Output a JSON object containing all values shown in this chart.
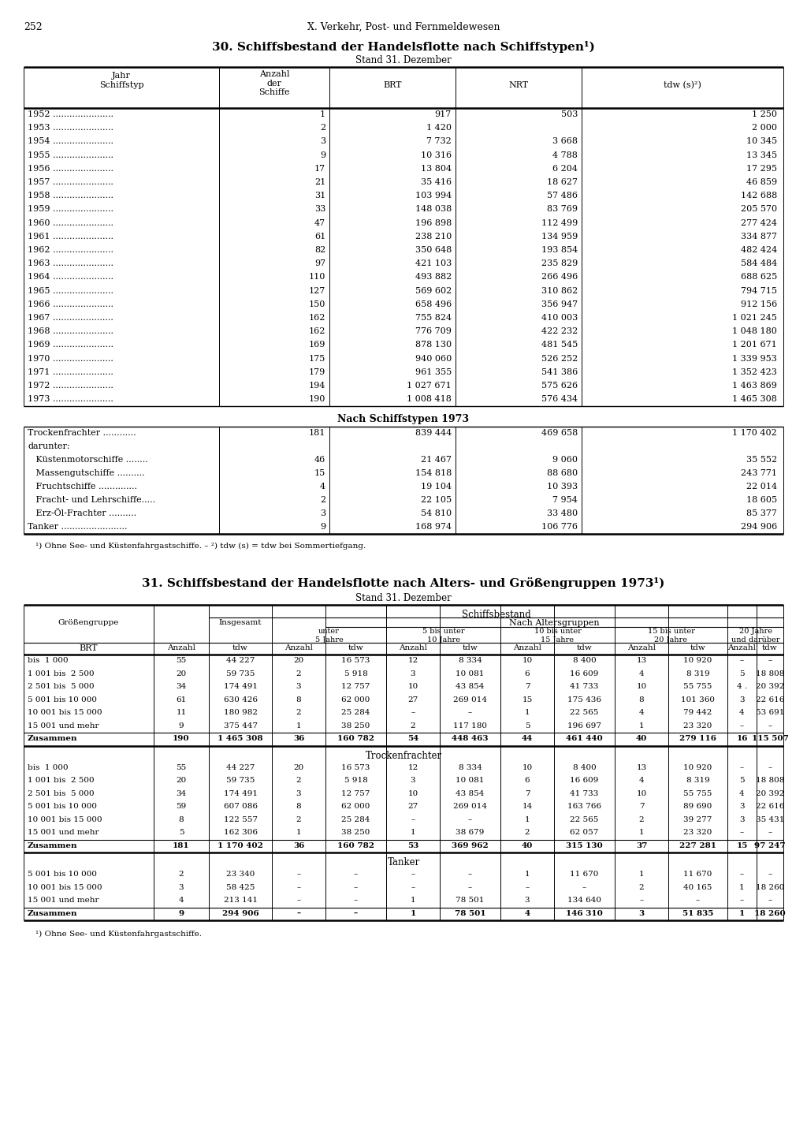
{
  "page_number": "252",
  "header": "X. Verkehr, Post- und Fernmeldewesen",
  "title1": "30. Schiffsbestand der Handelsflotte nach Schiffstypen¹)",
  "subtitle1": "Stand 31. Dezember",
  "table1_years": [
    [
      "1952",
      "1",
      "917",
      "503",
      "1 250"
    ],
    [
      "1953",
      "2",
      "1 420",
      "",
      "2 000"
    ],
    [
      "1954",
      "3",
      "7 732",
      "3 668",
      "10 345"
    ],
    [
      "1955",
      "9",
      "10 316",
      "4 788",
      "13 345"
    ],
    [
      "1956",
      "17",
      "13 804",
      "6 204",
      "17 295"
    ],
    [
      "1957",
      "21",
      "35 416",
      "18 627",
      "46 859"
    ],
    [
      "1958",
      "31",
      "103 994",
      "57 486",
      "142 688"
    ],
    [
      "1959",
      "33",
      "148 038",
      "83 769",
      "205 570"
    ],
    [
      "1960",
      "47",
      "196 898",
      "112 499",
      "277 424"
    ],
    [
      "1961",
      "61",
      "238 210",
      "134 959",
      "334 877"
    ],
    [
      "1962",
      "82",
      "350 648",
      "193 854",
      "482 424"
    ],
    [
      "1963",
      "97",
      "421 103",
      "235 829",
      "584 484"
    ],
    [
      "1964",
      "110",
      "493 882",
      "266 496",
      "688 625"
    ],
    [
      "1965",
      "127",
      "569 602",
      "310 862",
      "794 715"
    ],
    [
      "1966",
      "150",
      "658 496",
      "356 947",
      "912 156"
    ],
    [
      "1967",
      "162",
      "755 824",
      "410 003",
      "1 021 245"
    ],
    [
      "1968",
      "162",
      "776 709",
      "422 232",
      "1 048 180"
    ],
    [
      "1969",
      "169",
      "878 130",
      "481 545",
      "1 201 671"
    ],
    [
      "1970",
      "175",
      "940 060",
      "526 252",
      "1 339 953"
    ],
    [
      "1971",
      "179",
      "961 355",
      "541 386",
      "1 352 423"
    ],
    [
      "1972",
      "194",
      "1 027 671",
      "575 626",
      "1 463 869"
    ],
    [
      "1973",
      "190",
      "1 008 418",
      "576 434",
      "1 465 308"
    ]
  ],
  "section_header1": "Nach Schiffstypen 1973",
  "table1_types": [
    [
      "Trockenfrachter ............",
      "181",
      "839 444",
      "469 658",
      "1 170 402",
      false
    ],
    [
      "darunter:",
      "",
      "",
      "",
      "",
      false
    ],
    [
      "   Küstenmotorschiffe ........",
      "46",
      "21 467",
      "9 060",
      "35 552",
      true
    ],
    [
      "   Massengutschiffe ..........",
      "15",
      "154 818",
      "88 680",
      "243 771",
      true
    ],
    [
      "   Fruchtschiffe ..............",
      "4",
      "19 104",
      "10 393",
      "22 014",
      true
    ],
    [
      "   Fracht- und Lehrschiffe.....",
      "2",
      "22 105",
      "7 954",
      "18 605",
      true
    ],
    [
      "   Erz-Öl-Frachter ..........",
      "3",
      "54 810",
      "33 480",
      "85 377",
      true
    ],
    [
      "Tanker ........................",
      "9",
      "168 974",
      "106 776",
      "294 906",
      false
    ]
  ],
  "footnote1": "¹) Ohne See- und Küstenfahrgastschiffe. – ²) tdw (s) = tdw bei Sommertiefgang.",
  "title2": "31. Schiffsbestand der Handelsflotte nach Alters- und Größengruppen 1973¹)",
  "subtitle2": "Stand 31. Dezember",
  "table2_age_groups": [
    "unter\n5 Jahre",
    "5 bis unter\n10 Jahre",
    "10 bis unter\n15 Jahre",
    "15 bis unter\n20 Jahre",
    "20 Jahre\nund darüber"
  ],
  "table2_insgesamt": [
    [
      "bis  1 000",
      "55",
      "44 227",
      "20",
      "16 573",
      "12",
      "8 334",
      "10",
      "8 400",
      "13",
      "10 920",
      "–",
      "–"
    ],
    [
      "1 001 bis  2 500",
      "20",
      "59 735",
      "2",
      "5 918",
      "3",
      "10 081",
      "6",
      "16 609",
      "4",
      "8 319",
      "5",
      "18 808"
    ],
    [
      "2 501 bis  5 000",
      "34",
      "174 491",
      "3",
      "12 757",
      "10",
      "43 854",
      "7",
      "41 733",
      "10",
      "55 755",
      "4 .",
      "20 392"
    ],
    [
      "5 001 bis 10 000",
      "61",
      "630 426",
      "8",
      "62 000",
      "27",
      "269 014",
      "15",
      "175 436",
      "8",
      "101 360",
      "3",
      "22 616"
    ],
    [
      "10 001 bis 15 000",
      "11",
      "180 982",
      "2",
      "25 284",
      "–",
      "–",
      "1",
      "22 565",
      "4",
      "79 442",
      "4",
      "53 691"
    ],
    [
      "15 001 und mehr",
      "9",
      "375 447",
      "1",
      "38 250",
      "2",
      "117 180",
      "5",
      "196 697",
      "1",
      "23 320",
      "–",
      "–"
    ]
  ],
  "table2_zusammen": [
    "190",
    "1 465 308",
    "36",
    "160 782",
    "54",
    "448 463",
    "44",
    "461 440",
    "40",
    "279 116",
    "16",
    "115 507"
  ],
  "table2_trockenfrachter": [
    [
      "bis  1 000",
      "55",
      "44 227",
      "20",
      "16 573",
      "12",
      "8 334",
      "10",
      "8 400",
      "13",
      "10 920",
      "–",
      "–"
    ],
    [
      "1 001 bis  2 500",
      "20",
      "59 735",
      "2",
      "5 918",
      "3",
      "10 081",
      "6",
      "16 609",
      "4",
      "8 319",
      "5",
      "18 808"
    ],
    [
      "2 501 bis  5 000",
      "34",
      "174 491",
      "3",
      "12 757",
      "10",
      "43 854",
      "7",
      "41 733",
      "10",
      "55 755",
      "4",
      "20 392"
    ],
    [
      "5 001 bis 10 000",
      "59",
      "607 086",
      "8",
      "62 000",
      "27",
      "269 014",
      "14",
      "163 766",
      "7",
      "89 690",
      "3",
      "22 616"
    ],
    [
      "10 001 bis 15 000",
      "8",
      "122 557",
      "2",
      "25 284",
      "–",
      "–",
      "1",
      "22 565",
      "2",
      "39 277",
      "3",
      "35 431"
    ],
    [
      "15 001 und mehr",
      "5",
      "162 306",
      "1",
      "38 250",
      "1",
      "38 679",
      "2",
      "62 057",
      "1",
      "23 320",
      "–",
      "–"
    ]
  ],
  "table2_trockenfrachter_zusammen": [
    "181",
    "1 170 402",
    "36",
    "160 782",
    "53",
    "369 962",
    "40",
    "315 130",
    "37",
    "227 281",
    "15",
    "97 247"
  ],
  "table2_tanker": [
    [
      "5 001 bis 10 000",
      "2",
      "23 340",
      "–",
      "–",
      "–",
      "–",
      "1",
      "11 670",
      "1",
      "11 670",
      "–",
      "–"
    ],
    [
      "10 001 bis 15 000",
      "3",
      "58 425",
      "–",
      "–",
      "–",
      "–",
      "–",
      "–",
      "2",
      "40 165",
      "1",
      "18 260"
    ],
    [
      "15 001 und mehr",
      "4",
      "213 141",
      "–",
      "–",
      "1",
      "78 501",
      "3",
      "134 640",
      "–",
      "–",
      "–",
      "–"
    ]
  ],
  "table2_tanker_zusammen": [
    "9",
    "294 906",
    "–",
    "–",
    "1",
    "78 501",
    "4",
    "146 310",
    "3",
    "51 835",
    "1",
    "18 260"
  ],
  "footnote2": "¹) Ohne See- und Küstenfahrgastschiffe."
}
